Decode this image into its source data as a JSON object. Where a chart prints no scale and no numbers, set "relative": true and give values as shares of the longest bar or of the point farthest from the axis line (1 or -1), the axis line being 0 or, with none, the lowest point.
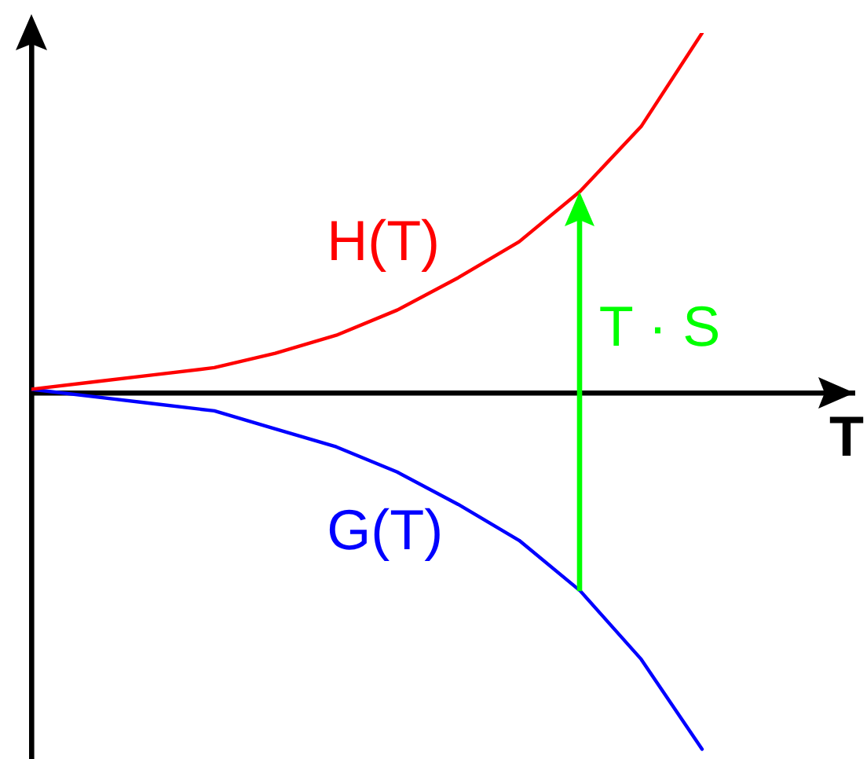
{
  "chart_data": {
    "type": "line",
    "xlabel": "T",
    "relative": true,
    "categories": [
      null,
      null,
      null,
      null,
      null,
      null,
      null,
      null,
      null,
      null,
      null,
      null
    ],
    "series": [
      {
        "name": "H(T)",
        "color": "#ff0000",
        "values": [
          0.01,
          0.03,
          0.05,
          0.07,
          0.11,
          0.16,
          0.23,
          0.32,
          0.42,
          0.56,
          0.74,
          1.0
        ]
      },
      {
        "name": "G(T)",
        "color": "#0000ff",
        "values": [
          0.01,
          -0.01,
          -0.03,
          -0.05,
          -0.1,
          -0.15,
          -0.22,
          -0.31,
          -0.41,
          -0.55,
          -0.74,
          -0.99
        ]
      }
    ],
    "annotations": [
      "T · S"
    ]
  }
}
